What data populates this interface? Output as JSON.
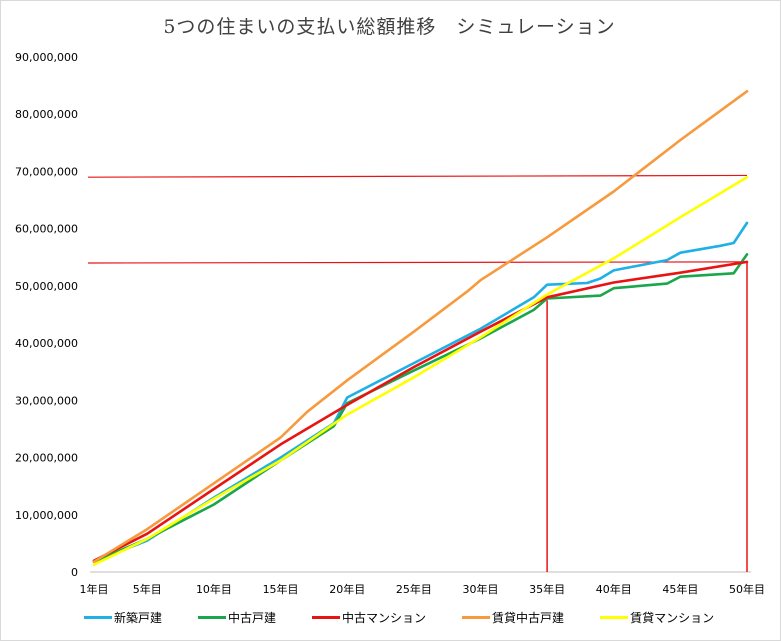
{
  "chart_data": {
    "type": "line",
    "title": "5つの住まいの支払い総額推移　シミュレーション",
    "x_ticks": [
      "1年目",
      "5年目",
      "10年目",
      "15年目",
      "20年目",
      "25年目",
      "30年目",
      "35年目",
      "40年目",
      "45年目",
      "50年目"
    ],
    "y_ticks": [
      "0",
      "10,000,000",
      "20,000,000",
      "30,000,000",
      "40,000,000",
      "50,000,000",
      "60,000,000",
      "70,000,000",
      "80,000,000",
      "90,000,000"
    ],
    "ylim": [
      0,
      90000000
    ],
    "xlim": [
      1,
      50
    ],
    "grid": false,
    "legend_position": "bottom",
    "series": [
      {
        "name": "新築戸建",
        "color": "#1fb0e6",
        "points": [
          [
            1,
            1800000
          ],
          [
            5,
            5500000
          ],
          [
            10,
            13000000
          ],
          [
            15,
            20000000
          ],
          [
            19,
            26000000
          ],
          [
            20,
            30500000
          ],
          [
            25,
            36500000
          ],
          [
            30,
            42500000
          ],
          [
            34,
            48000000
          ],
          [
            35,
            50200000
          ],
          [
            38,
            50500000
          ],
          [
            39,
            51300000
          ],
          [
            40,
            52700000
          ],
          [
            44,
            54500000
          ],
          [
            45,
            55800000
          ],
          [
            48,
            57000000
          ],
          [
            49,
            57500000
          ],
          [
            50,
            61000000
          ]
        ]
      },
      {
        "name": "中古戸建",
        "color": "#1aa64a",
        "points": [
          [
            1,
            1800000
          ],
          [
            5,
            5800000
          ],
          [
            10,
            11800000
          ],
          [
            15,
            19500000
          ],
          [
            19,
            25500000
          ],
          [
            20,
            29500000
          ],
          [
            25,
            35200000
          ],
          [
            30,
            40800000
          ],
          [
            34,
            45800000
          ],
          [
            35,
            47800000
          ],
          [
            39,
            48300000
          ],
          [
            40,
            49600000
          ],
          [
            44,
            50400000
          ],
          [
            45,
            51600000
          ],
          [
            49,
            52200000
          ],
          [
            50,
            55500000
          ]
        ]
      },
      {
        "name": "中古マンション",
        "color": "#e81414",
        "points": [
          [
            1,
            2000000
          ],
          [
            5,
            6700000
          ],
          [
            10,
            14500000
          ],
          [
            15,
            22300000
          ],
          [
            20,
            29200000
          ],
          [
            25,
            35800000
          ],
          [
            30,
            42000000
          ],
          [
            35,
            48000000
          ],
          [
            40,
            50600000
          ],
          [
            45,
            52300000
          ],
          [
            50,
            54200000
          ]
        ]
      },
      {
        "name": "賃貸中古戸建",
        "color": "#f79a3e",
        "points": [
          [
            1,
            1800000
          ],
          [
            5,
            7500000
          ],
          [
            10,
            15500000
          ],
          [
            15,
            23500000
          ],
          [
            17,
            28000000
          ],
          [
            20,
            33500000
          ],
          [
            25,
            42000000
          ],
          [
            29,
            49000000
          ],
          [
            30,
            51000000
          ],
          [
            35,
            58500000
          ],
          [
            40,
            66500000
          ],
          [
            45,
            75500000
          ],
          [
            50,
            84000000
          ]
        ]
      },
      {
        "name": "賃貸マンション",
        "color": "#ffff00",
        "points": [
          [
            1,
            1300000
          ],
          [
            5,
            5800000
          ],
          [
            10,
            12800000
          ],
          [
            15,
            19500000
          ],
          [
            20,
            27500000
          ],
          [
            25,
            34000000
          ],
          [
            30,
            41000000
          ],
          [
            35,
            48500000
          ],
          [
            40,
            54800000
          ],
          [
            45,
            62000000
          ],
          [
            50,
            69000000
          ]
        ]
      }
    ],
    "reference_lines": {
      "color": "#e81414",
      "horizontal": [
        [
          69000000,
          69300000
        ],
        [
          54000000,
          54200000
        ]
      ],
      "vertical": [
        [
          35,
          47500000
        ],
        [
          50,
          54200000
        ]
      ]
    }
  }
}
